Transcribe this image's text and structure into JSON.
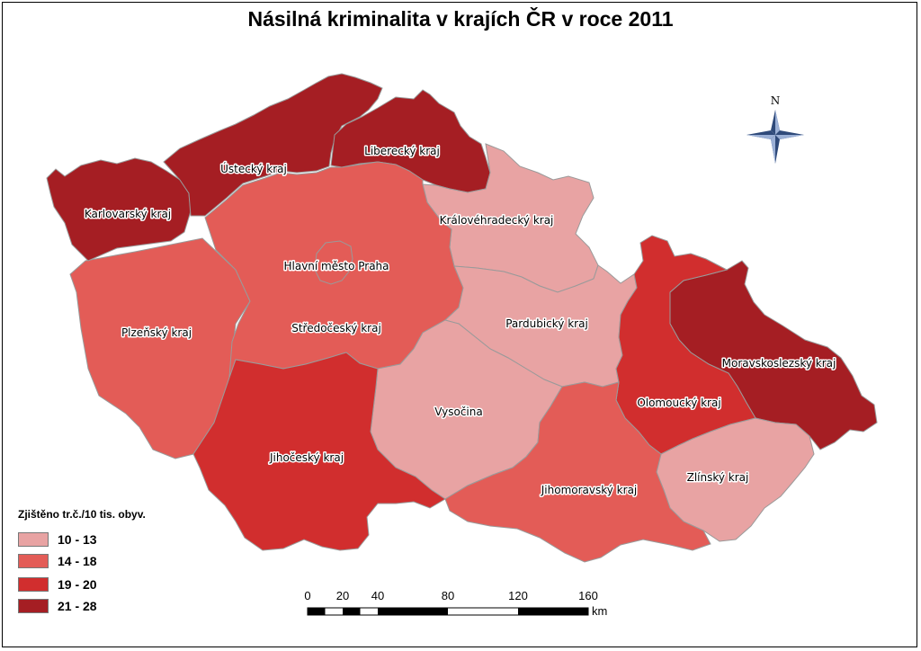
{
  "title": "Násilná kriminalita v krajích ČR v roce 2011",
  "colors": {
    "c1": "#e8a3a3",
    "c2": "#e35c57",
    "c3": "#d12e2e",
    "c4": "#a51e23"
  },
  "regions": [
    {
      "name": "Karlovarský kraj",
      "class": "21 - 28"
    },
    {
      "name": "Ústecký kraj",
      "class": "21 - 28"
    },
    {
      "name": "Liberecký kraj",
      "class": "21 - 28"
    },
    {
      "name": "Královéhradecký kraj",
      "class": "10 - 13"
    },
    {
      "name": "Hlavní město Praha",
      "class": "14 - 18"
    },
    {
      "name": "Středočeský kraj",
      "class": "14 - 18"
    },
    {
      "name": "Plzeňský kraj",
      "class": "14 - 18"
    },
    {
      "name": "Pardubický kraj",
      "class": "10 - 13"
    },
    {
      "name": "Moravskoslezský kraj",
      "class": "21 - 28"
    },
    {
      "name": "Vysočina",
      "class": "10 - 13"
    },
    {
      "name": "Olomoucký kraj",
      "class": "19 - 20"
    },
    {
      "name": "Jihočeský kraj",
      "class": "19 - 20"
    },
    {
      "name": "Zlínský kraj",
      "class": "10 - 13"
    },
    {
      "name": "Jihomoravský kraj",
      "class": "14 - 18"
    }
  ],
  "legend": {
    "title": "Zjištěno tr.č./10 tis. obyv.",
    "items": [
      {
        "label": "10 - 13",
        "color": "#e8a3a3"
      },
      {
        "label": "14 - 18",
        "color": "#e35c57"
      },
      {
        "label": "19 - 20",
        "color": "#d12e2e"
      },
      {
        "label": "21 - 28",
        "color": "#a51e23"
      }
    ]
  },
  "scalebar": {
    "ticks": [
      "0",
      "20",
      "40",
      "80",
      "120",
      "160"
    ],
    "unit": "km"
  },
  "north": {
    "label": "N"
  }
}
